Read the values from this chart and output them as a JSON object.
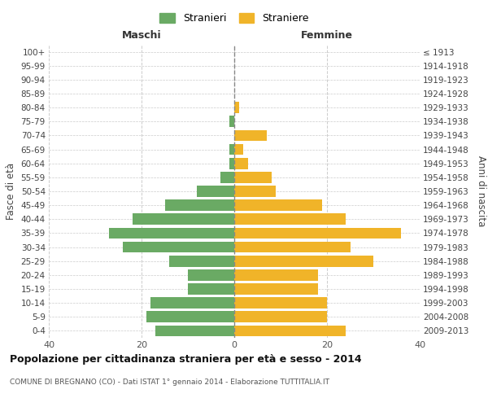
{
  "age_groups": [
    "0-4",
    "5-9",
    "10-14",
    "15-19",
    "20-24",
    "25-29",
    "30-34",
    "35-39",
    "40-44",
    "45-49",
    "50-54",
    "55-59",
    "60-64",
    "65-69",
    "70-74",
    "75-79",
    "80-84",
    "85-89",
    "90-94",
    "95-99",
    "100+"
  ],
  "birth_years": [
    "2009-2013",
    "2004-2008",
    "1999-2003",
    "1994-1998",
    "1989-1993",
    "1984-1988",
    "1979-1983",
    "1974-1978",
    "1969-1973",
    "1964-1968",
    "1959-1963",
    "1954-1958",
    "1949-1953",
    "1944-1948",
    "1939-1943",
    "1934-1938",
    "1929-1933",
    "1924-1928",
    "1919-1923",
    "1914-1918",
    "≤ 1913"
  ],
  "males": [
    17,
    19,
    18,
    10,
    10,
    14,
    24,
    27,
    22,
    15,
    8,
    3,
    1,
    1,
    0,
    1,
    0,
    0,
    0,
    0,
    0
  ],
  "females": [
    24,
    20,
    20,
    18,
    18,
    30,
    25,
    36,
    24,
    19,
    9,
    8,
    3,
    2,
    7,
    0,
    1,
    0,
    0,
    0,
    0
  ],
  "male_color": "#6aaa64",
  "female_color": "#f0b429",
  "background_color": "#ffffff",
  "grid_color": "#cccccc",
  "title": "Popolazione per cittadinanza straniera per età e sesso - 2014",
  "subtitle": "COMUNE DI BREGNANO (CO) - Dati ISTAT 1° gennaio 2014 - Elaborazione TUTTITALIA.IT",
  "xlabel_left": "Maschi",
  "xlabel_right": "Femmine",
  "ylabel_left": "Fasce di età",
  "ylabel_right": "Anni di nascita",
  "legend_male": "Stranieri",
  "legend_female": "Straniere",
  "xlim": 40,
  "bar_height": 0.8
}
